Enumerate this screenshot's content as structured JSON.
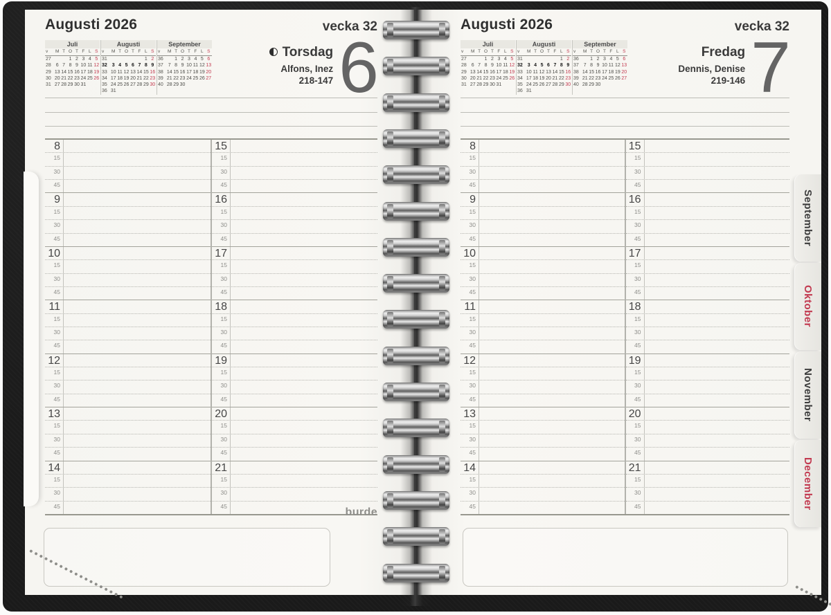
{
  "brand": "burde",
  "pages": [
    {
      "month_title": "Augusti 2026",
      "week_label": "vecka 32",
      "weekday": "Torsdag",
      "name_day": "Alfons, Inez",
      "day_count": "218-147",
      "day_number": "6",
      "moon": true
    },
    {
      "month_title": "Augusti 2026",
      "week_label": "vecka 32",
      "weekday": "Fredag",
      "name_day": "Dennis, Denise",
      "day_count": "219-146",
      "day_number": "7",
      "moon": false
    }
  ],
  "mini_calendar": {
    "day_headers": [
      "v",
      "M",
      "T",
      "O",
      "T",
      "F",
      "L",
      "S"
    ],
    "months": [
      {
        "name": "Juli",
        "weeks": [
          [
            27,
            "",
            "",
            1,
            2,
            3,
            4,
            5
          ],
          [
            28,
            6,
            7,
            8,
            9,
            10,
            11,
            12
          ],
          [
            29,
            13,
            14,
            15,
            16,
            17,
            18,
            19
          ],
          [
            30,
            20,
            21,
            22,
            23,
            24,
            25,
            26
          ],
          [
            31,
            27,
            28,
            29,
            30,
            31,
            "",
            ""
          ]
        ]
      },
      {
        "name": "Augusti",
        "highlight_week": 32,
        "weeks": [
          [
            31,
            "",
            "",
            "",
            "",
            "",
            1,
            2
          ],
          [
            32,
            3,
            4,
            5,
            6,
            7,
            8,
            9
          ],
          [
            33,
            10,
            11,
            12,
            13,
            14,
            15,
            16
          ],
          [
            34,
            17,
            18,
            19,
            20,
            21,
            22,
            23
          ],
          [
            35,
            24,
            25,
            26,
            27,
            28,
            29,
            30
          ],
          [
            36,
            31,
            "",
            "",
            "",
            "",
            "",
            ""
          ]
        ]
      },
      {
        "name": "September",
        "weeks": [
          [
            36,
            "",
            1,
            2,
            3,
            4,
            5,
            6
          ],
          [
            37,
            7,
            8,
            9,
            10,
            11,
            12,
            13
          ],
          [
            38,
            14,
            15,
            16,
            17,
            18,
            19,
            20
          ],
          [
            39,
            21,
            22,
            23,
            24,
            25,
            26,
            27
          ],
          [
            40,
            28,
            29,
            30,
            "",
            "",
            "",
            ""
          ]
        ]
      }
    ]
  },
  "time_grid": {
    "left_hours": [
      "8",
      "9",
      "10",
      "11",
      "12",
      "13",
      "14"
    ],
    "right_hours": [
      "15",
      "16",
      "17",
      "18",
      "19",
      "20",
      "21"
    ],
    "quarter_labels": [
      "15",
      "30",
      "45"
    ]
  },
  "tabs": [
    {
      "label": "September",
      "color": "#3d3d3d"
    },
    {
      "label": "Oktober",
      "color": "#c23a50"
    },
    {
      "label": "November",
      "color": "#3d3d3d"
    },
    {
      "label": "December",
      "color": "#c23a50"
    }
  ],
  "colors": {
    "sunday_red": "#c23a50",
    "text_dark": "#3b3b3b"
  }
}
